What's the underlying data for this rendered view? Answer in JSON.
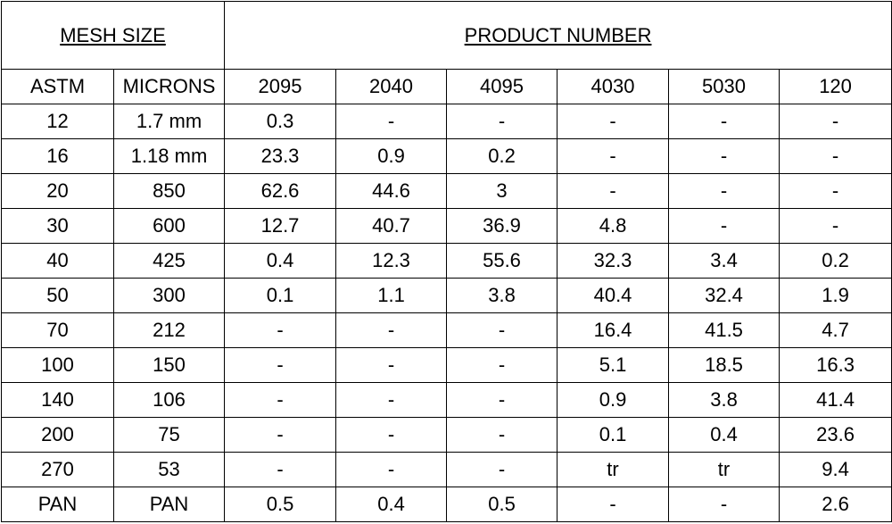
{
  "header": {
    "mesh_size": "MESH SIZE",
    "product_number": "PRODUCT NUMBER"
  },
  "table": {
    "columns": [
      "ASTM",
      "MICRONS",
      "2095",
      "2040",
      "4095",
      "4030",
      "5030",
      "120"
    ],
    "rows": [
      [
        "12",
        "1.7 mm",
        "0.3",
        "-",
        "-",
        "-",
        "-",
        "-"
      ],
      [
        "16",
        "1.18 mm",
        "23.3",
        "0.9",
        "0.2",
        "-",
        "-",
        "-"
      ],
      [
        "20",
        "850",
        "62.6",
        "44.6",
        "3",
        "-",
        "-",
        "-"
      ],
      [
        "30",
        "600",
        "12.7",
        "40.7",
        "36.9",
        "4.8",
        "-",
        "-"
      ],
      [
        "40",
        "425",
        "0.4",
        "12.3",
        "55.6",
        "32.3",
        "3.4",
        "0.2"
      ],
      [
        "50",
        "300",
        "0.1",
        "1.1",
        "3.8",
        "40.4",
        "32.4",
        "1.9"
      ],
      [
        "70",
        "212",
        "-",
        "-",
        "-",
        "16.4",
        "41.5",
        "4.7"
      ],
      [
        "100",
        "150",
        "-",
        "-",
        "-",
        "5.1",
        "18.5",
        "16.3"
      ],
      [
        "140",
        "106",
        "-",
        "-",
        "-",
        "0.9",
        "3.8",
        "41.4"
      ],
      [
        "200",
        "75",
        "-",
        "-",
        "-",
        "0.1",
        "0.4",
        "23.6"
      ],
      [
        "270",
        "53",
        "-",
        "-",
        "-",
        "tr",
        "tr",
        "9.4"
      ],
      [
        "PAN",
        "PAN",
        "0.5",
        "0.4",
        "0.5",
        "-",
        "-",
        "2.6"
      ]
    ]
  }
}
